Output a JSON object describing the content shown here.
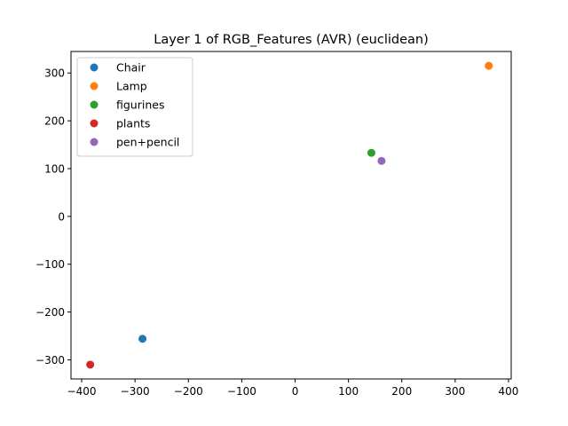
{
  "chart_data": {
    "type": "scatter",
    "title": "Layer 1 of RGB_Features (AVR) (euclidean)",
    "xlabel": "",
    "ylabel": "",
    "xlim": [
      -420,
      405
    ],
    "ylim": [
      -340,
      345
    ],
    "xticks": [
      -400,
      -300,
      -200,
      -100,
      0,
      100,
      200,
      300,
      400
    ],
    "yticks": [
      -300,
      -200,
      -100,
      0,
      100,
      200,
      300
    ],
    "xtick_labels": [
      "−400",
      "−300",
      "−200",
      "−100",
      "0",
      "100",
      "200",
      "300",
      "400"
    ],
    "ytick_labels": [
      "−300",
      "−200",
      "−100",
      "0",
      "100",
      "200",
      "300"
    ],
    "grid": false,
    "legend_position": "top-left",
    "series": [
      {
        "name": "Chair",
        "color": "#1f77b4",
        "x": [
          -286
        ],
        "y": [
          -256
        ]
      },
      {
        "name": "Lamp",
        "color": "#ff7f0e",
        "x": [
          363
        ],
        "y": [
          315
        ]
      },
      {
        "name": "figurines",
        "color": "#2ca02c",
        "x": [
          143
        ],
        "y": [
          133
        ]
      },
      {
        "name": "plants",
        "color": "#d62728",
        "x": [
          -384
        ],
        "y": [
          -310
        ]
      },
      {
        "name": "pen+pencil",
        "color": "#9467bd",
        "x": [
          162
        ],
        "y": [
          116
        ]
      }
    ]
  }
}
